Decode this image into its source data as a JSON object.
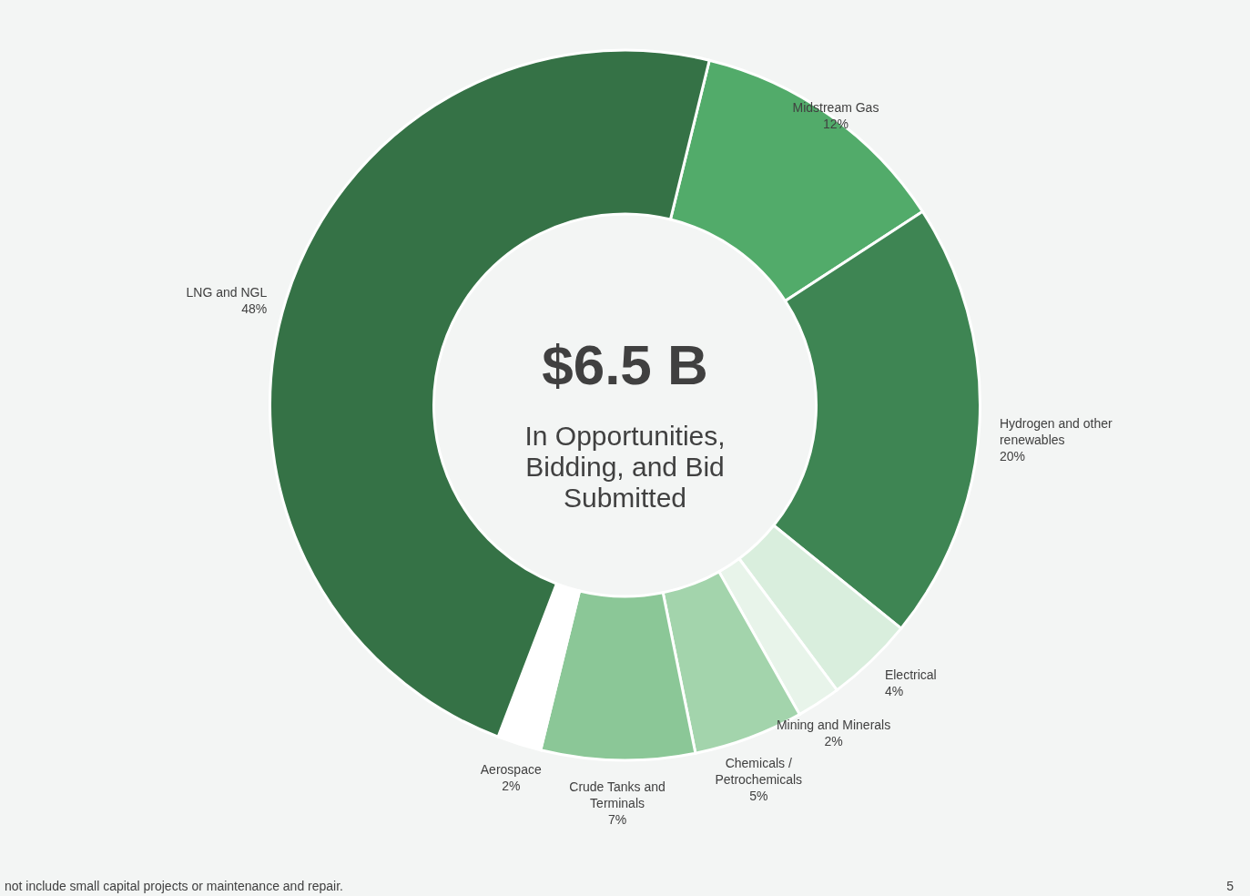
{
  "chart_data": {
    "type": "donut",
    "categories": [
      "Midstream Gas",
      "Hydrogen and other renewables",
      "Electrical",
      "Mining and Minerals",
      "Chemicals / Petrochemicals",
      "Crude Tanks and Terminals",
      "Aerospace",
      "LNG and NGL"
    ],
    "values": [
      12,
      20,
      4,
      2,
      5,
      7,
      2,
      48
    ],
    "value_labels": [
      "12%",
      "20%",
      "4%",
      "2%",
      "5%",
      "7%",
      "2%",
      "48%"
    ],
    "colors": [
      "#52ab6a",
      "#3e8553",
      "#d9eedd",
      "#e8f4ea",
      "#a3d4ac",
      "#8bc797",
      "#ffffff",
      "#357246"
    ],
    "annotations": [
      "$6.5 B",
      "In Opportunities, Bidding, and Bid Submitted",
      "not include small capital projects or maintenance and repair.",
      "5"
    ]
  }
}
